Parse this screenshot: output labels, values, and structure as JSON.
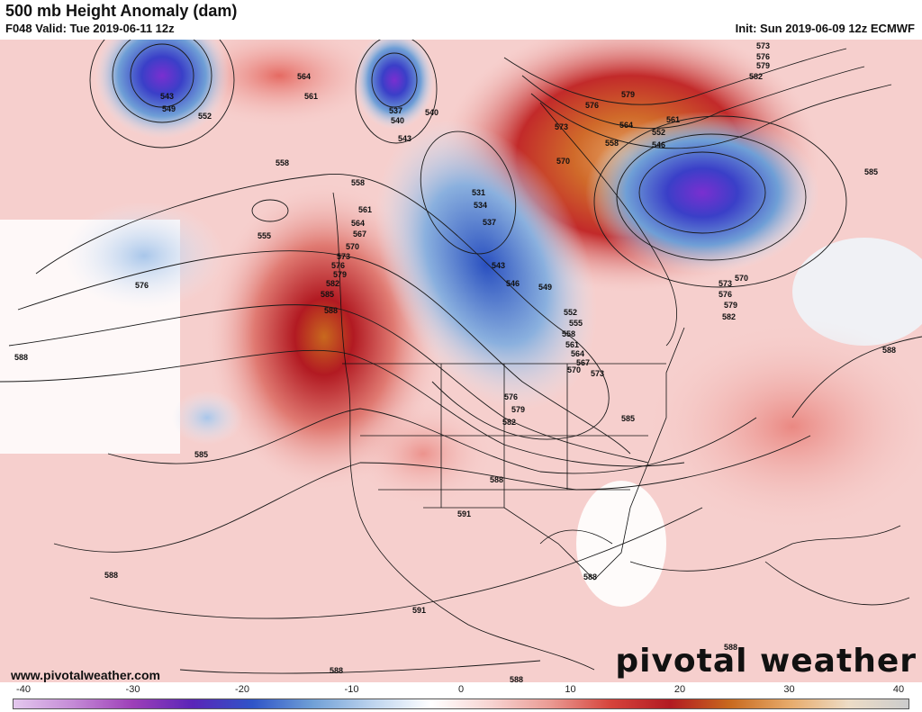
{
  "header": {
    "title": "500 mb Height Anomaly (dam)",
    "valid": "F048 Valid: Tue 2019-06-11 12z",
    "init": "Init: Sun 2019-06-09 12z ECMWF"
  },
  "footer": {
    "url": "www.pivotalweather.com",
    "brand": "pivotal weather"
  },
  "colorbar": {
    "ticks": [
      "-40",
      "-30",
      "-20",
      "-10",
      "0",
      "10",
      "20",
      "30",
      "40"
    ],
    "colors": [
      "#e4c8ee",
      "#c48ad6",
      "#9d3fb8",
      "#5a25b8",
      "#2f54c8",
      "#6f9fd6",
      "#bcd3ee",
      "#ffffff",
      "#f7d4d2",
      "#ea9a93",
      "#d6443c",
      "#b21a22",
      "#c8691e",
      "#e7aa6a",
      "#eddcc6",
      "#cccccc"
    ]
  },
  "map": {
    "contour_labels": [
      "543",
      "549",
      "552",
      "537",
      "540",
      "540",
      "543",
      "561",
      "564",
      "558",
      "558",
      "555",
      "561",
      "564",
      "567",
      "570",
      "573",
      "576",
      "579",
      "582",
      "585",
      "588",
      "576",
      "585",
      "588",
      "531",
      "534",
      "537",
      "543",
      "546",
      "549",
      "552",
      "555",
      "558",
      "561",
      "564",
      "567",
      "570",
      "573",
      "576",
      "579",
      "582",
      "585",
      "573",
      "576",
      "579",
      "582",
      "579",
      "576",
      "573",
      "570",
      "564",
      "558",
      "561",
      "552",
      "546",
      "570",
      "573",
      "576",
      "579",
      "582",
      "585",
      "588",
      "588",
      "591",
      "588",
      "591",
      "588",
      "588",
      "588",
      "588",
      "573"
    ]
  },
  "colors": {
    "negative_strong": "#6a2fc0",
    "negative": "#3a5fc8",
    "positive": "#c8242a",
    "positive_strong": "#c8691e",
    "background_positive": "#f5c6c4"
  }
}
